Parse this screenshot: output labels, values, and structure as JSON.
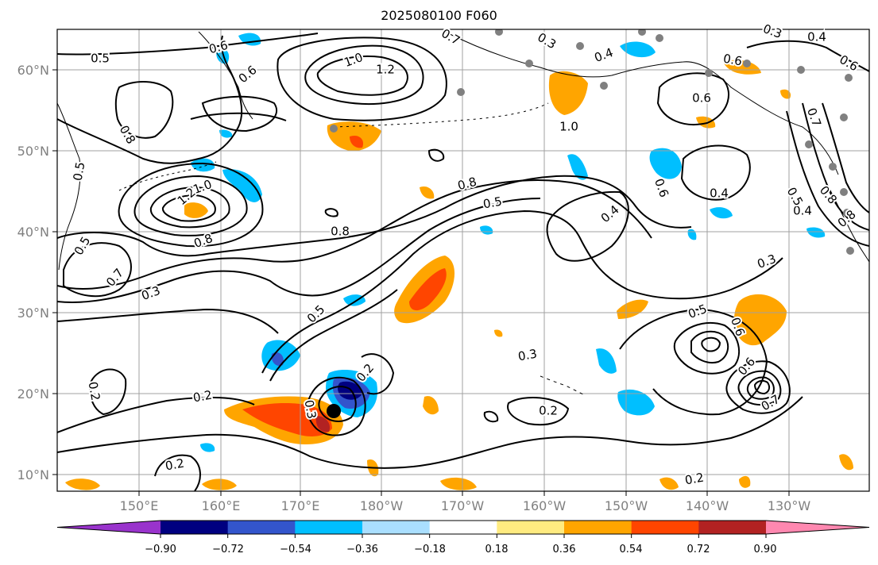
{
  "title": "2025080100 F060",
  "lat_ticks": [
    "60°N",
    "50°N",
    "40°N",
    "30°N",
    "20°N",
    "10°N"
  ],
  "lon_ticks": [
    "150°E",
    "160°E",
    "170°E",
    "180°W",
    "170°W",
    "160°W",
    "150°W",
    "140°W",
    "130°W"
  ],
  "colorbar": {
    "tick_labels": [
      "−0.90",
      "−0.72",
      "−0.54",
      "−0.36",
      "−0.18",
      "0.18",
      "0.36",
      "0.54",
      "0.72",
      "0.90"
    ],
    "colors": [
      "#9933cc",
      "#000080",
      "#3355cc",
      "#00bfff",
      "#aadfff",
      "#ffffff",
      "#ffeb80",
      "#ffa500",
      "#ff4500",
      "#b22222",
      "#ff88b0"
    ]
  },
  "contour_labels": [
    {
      "text": "0.5"
    },
    {
      "text": "0.6"
    },
    {
      "text": "0.6"
    },
    {
      "text": "0.8"
    },
    {
      "text": "0.5"
    },
    {
      "text": "1.0"
    },
    {
      "text": "1.2"
    },
    {
      "text": "0.8"
    },
    {
      "text": "0.5"
    },
    {
      "text": "0.7"
    },
    {
      "text": "0.3"
    },
    {
      "text": "1.0"
    },
    {
      "text": "1.2"
    },
    {
      "text": "0.7"
    },
    {
      "text": "0.3"
    },
    {
      "text": "0.4"
    },
    {
      "text": "0.6"
    },
    {
      "text": "1.0"
    },
    {
      "text": "0.8"
    },
    {
      "text": "0.5"
    },
    {
      "text": "0.8"
    },
    {
      "text": "0.4"
    },
    {
      "text": "0.6"
    },
    {
      "text": "0.4"
    },
    {
      "text": "0.3"
    },
    {
      "text": "0.3"
    },
    {
      "text": "0.4"
    },
    {
      "text": "0.5"
    },
    {
      "text": "0.6"
    },
    {
      "text": "0.6"
    },
    {
      "text": "0.7"
    },
    {
      "text": "0.2"
    },
    {
      "text": "0.3"
    },
    {
      "text": "0.2"
    },
    {
      "text": "0.2"
    },
    {
      "text": "0.2"
    },
    {
      "text": "0.2"
    },
    {
      "text": "0.2"
    },
    {
      "text": "0.6"
    },
    {
      "text": "0.4"
    },
    {
      "text": "0.6"
    },
    {
      "text": "0.3"
    },
    {
      "text": "0.5"
    },
    {
      "text": "0.8"
    },
    {
      "text": "0.7"
    },
    {
      "text": "0.8"
    },
    {
      "text": "0.5"
    }
  ]
}
